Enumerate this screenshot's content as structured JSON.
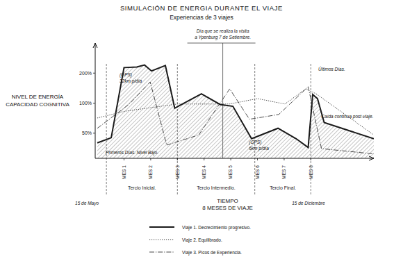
{
  "chart_data": {
    "type": "line",
    "title": "SIMULACIÓN DE ENERGIA DURANTE EL VIAJE",
    "subtitle": "Experiencias de 3 viajes",
    "x_label": [
      "TIEMPO",
      "8 MESES DE VIAJE"
    ],
    "y_label": [
      "NIVEL DE ENERGÍA",
      "CAPACIDAD COGNITIVA"
    ],
    "xlim": [
      -0.08,
      10.36
    ],
    "xticks": [
      {
        "value": 1,
        "label": "MES 1"
      },
      {
        "value": 2,
        "label": "MES 2"
      },
      {
        "value": 3,
        "label": "MES 3"
      },
      {
        "value": 4,
        "label": "MES 4"
      },
      {
        "value": 5,
        "label": "MES 5"
      },
      {
        "value": 6,
        "label": "MES 6"
      },
      {
        "value": 7,
        "label": "MES 7"
      },
      {
        "value": 8,
        "label": "MES 8"
      }
    ],
    "ylim": [
      28,
      400
    ],
    "yticks": [
      {
        "value": 50,
        "label": "50%"
      },
      {
        "value": 100,
        "label": "100%"
      },
      {
        "value": 200,
        "label": "200%"
      }
    ],
    "log": "y",
    "grid": false,
    "legend": "bottom",
    "series": [
      {
        "name": "Viaje 1. Decrecimiento progresivo.",
        "type": "area",
        "line_style": "solid",
        "color": "#1a1a1a",
        "x": [
          0,
          0.52,
          1,
          1.48,
          1.77,
          2.03,
          2.55,
          2.9,
          3.9,
          4.6,
          5.08,
          5.78,
          6.77,
          7.45,
          7.9,
          8.07,
          8.25,
          8.5,
          10.36
        ],
        "values": [
          40,
          45,
          227,
          230,
          241,
          210,
          238,
          89,
          124,
          97,
          93,
          44,
          56,
          44,
          36,
          122,
          111,
          64,
          44
        ]
      },
      {
        "name": "Viaje 2. Equilibrado.",
        "type": "line",
        "line_style": "dotted",
        "color": "#333333",
        "x": [
          0,
          1.04,
          3,
          4.95,
          6,
          7.03,
          7.81,
          8.2,
          10.36
        ],
        "values": [
          71,
          83,
          98,
          98,
          111,
          98,
          139,
          124,
          48
        ]
      },
      {
        "name": "Viaje 3. Picos de Experiencia.",
        "type": "line",
        "line_style": "dashdot",
        "color": "#333333",
        "x": [
          0,
          1.2,
          1.98,
          2.6,
          3.8,
          4.96,
          5.7,
          6.8,
          7.9,
          8.4,
          10.36
        ],
        "values": [
          56,
          98,
          163,
          38,
          48,
          139,
          69,
          77,
          146,
          35,
          31
        ]
      }
    ],
    "periods": [
      {
        "label": "Tercio Inicial.",
        "start": 0.34,
        "end": 3
      },
      {
        "label": "Tercio Intermedio.",
        "start": 3,
        "end": 5.9
      },
      {
        "label": "Tercio Final.",
        "start": 5.9,
        "end": 8
      }
    ],
    "events": [
      {
        "x": 4.7,
        "label": [
          "Día que se realiza la visita",
          "a Ypenburg 7 de Setiembre."
        ]
      }
    ],
    "dates": [
      {
        "x": 0,
        "label": "15 de Mayo"
      },
      {
        "x": 8.3,
        "label": "15 de Diciembre"
      }
    ],
    "annotations": [
      {
        "text": "(GPS)",
        "x": 0.83,
        "y": 184
      },
      {
        "text": "32km p/día",
        "x": 0.83,
        "y": 160
      },
      {
        "text": "(GPS)",
        "x": 5.68,
        "y": 39
      },
      {
        "text": "6km p/día",
        "x": 5.68,
        "y": 34
      },
      {
        "text": "Últimos Días.",
        "x": 8.28,
        "y": 210
      },
      {
        "text": "Caída continua post-viaje.",
        "x": 8.39,
        "y": 71
      },
      {
        "text": "Primeros Días. Nivel Bajo.",
        "x": 0.31,
        "y": 31
      }
    ]
  }
}
